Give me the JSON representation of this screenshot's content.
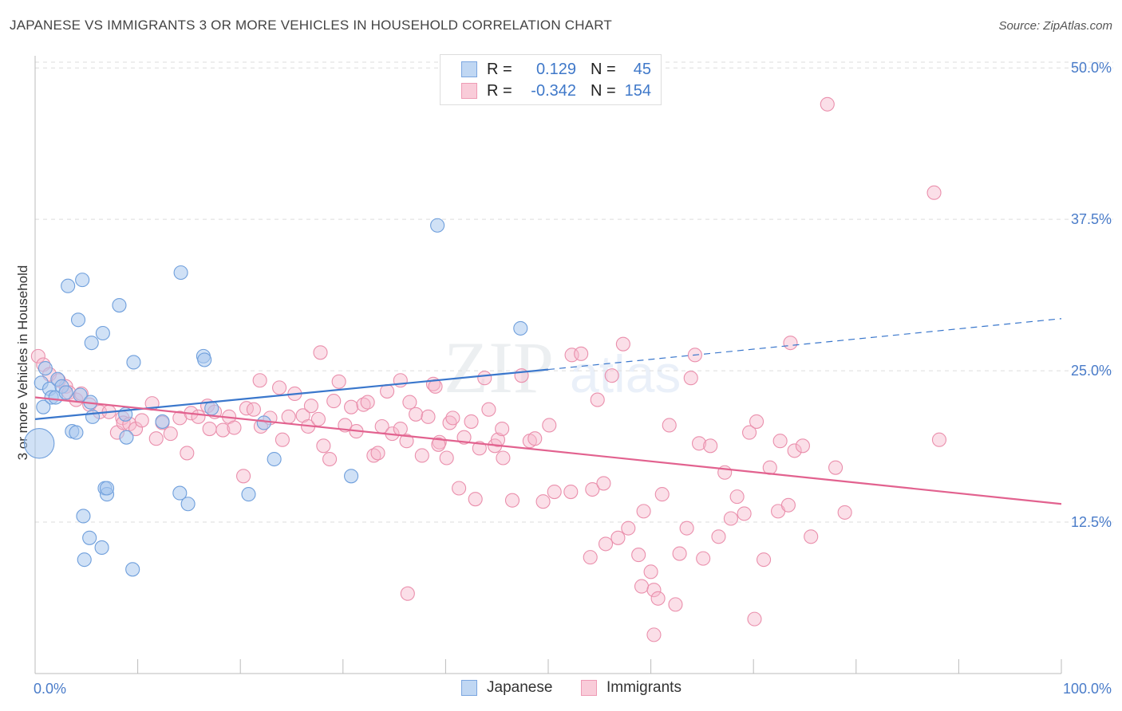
{
  "title": "JAPANESE VS IMMIGRANTS 3 OR MORE VEHICLES IN HOUSEHOLD CORRELATION CHART",
  "source": "Source: ZipAtlas.com",
  "watermark": {
    "zip": "ZIP",
    "atlas": "atlas"
  },
  "legend_top": [
    {
      "r_key": "R =",
      "r_value": "0.129",
      "n_key": "N =",
      "n_value": "45"
    },
    {
      "r_key": "R =",
      "r_value": "-0.342",
      "n_key": "N =",
      "n_value": "154"
    }
  ],
  "legend_bottom": [
    {
      "label": "Japanese"
    },
    {
      "label": "Immigrants"
    }
  ],
  "colors": {
    "japanese_fill": "#a9c8ef",
    "japanese_stroke": "#6f9fdc",
    "japanese_line": "#3a77cc",
    "immigrants_fill": "#f7b9cb",
    "immigrants_stroke": "#ea8fac",
    "immigrants_line": "#e2628f",
    "tick_label": "#4a7cc9",
    "grid": "#dddddd"
  },
  "chart_data": {
    "type": "scatter",
    "title": "JAPANESE VS IMMIGRANTS 3 OR MORE VEHICLES IN HOUSEHOLD CORRELATION CHART",
    "xlabel": "",
    "ylabel": "3 or more Vehicles in Household",
    "x_tick_labels": [
      "0.0%",
      "100.0%"
    ],
    "y_tick_labels": [
      "12.5%",
      "25.0%",
      "37.5%",
      "50.0%"
    ],
    "y_ticks": [
      12.5,
      25.0,
      37.5,
      50.0
    ],
    "xlim": [
      0,
      100
    ],
    "ylim": [
      0,
      51
    ],
    "grid": true,
    "legend_position": "top-center",
    "series": [
      {
        "name": "Japanese",
        "R": 0.129,
        "N": 45,
        "trend": {
          "solid_x": [
            0,
            50
          ],
          "solid_y": [
            21.0,
            25.1
          ],
          "dashed_x": [
            50,
            100
          ],
          "dashed_y": [
            25.1,
            29.3
          ]
        },
        "points": [
          [
            0.4,
            19.0,
            2.2
          ],
          [
            0.6,
            24.0,
            1
          ],
          [
            0.8,
            22.0,
            1
          ],
          [
            1.0,
            25.2,
            1
          ],
          [
            1.4,
            23.5,
            1
          ],
          [
            1.6,
            22.8,
            1
          ],
          [
            2.0,
            22.8,
            1
          ],
          [
            2.2,
            24.3,
            1
          ],
          [
            2.6,
            23.7,
            1
          ],
          [
            3.0,
            23.2,
            1
          ],
          [
            3.2,
            32.0,
            1
          ],
          [
            3.6,
            20.0,
            1
          ],
          [
            4.0,
            19.9,
            1
          ],
          [
            4.2,
            29.2,
            1
          ],
          [
            4.4,
            23.0,
            1
          ],
          [
            4.6,
            32.5,
            1
          ],
          [
            5.4,
            22.4,
            1
          ],
          [
            5.5,
            27.3,
            1
          ],
          [
            5.6,
            21.2,
            1
          ],
          [
            6.6,
            28.1,
            1
          ],
          [
            6.8,
            15.3,
            1
          ],
          [
            7.0,
            14.8,
            1
          ],
          [
            8.2,
            30.4,
            1
          ],
          [
            8.8,
            21.4,
            1
          ],
          [
            8.9,
            19.5,
            1
          ],
          [
            9.6,
            25.7,
            1
          ],
          [
            12.4,
            20.8,
            1
          ],
          [
            14.1,
            14.9,
            1
          ],
          [
            14.2,
            33.1,
            1
          ],
          [
            14.9,
            14.0,
            1
          ],
          [
            16.4,
            26.2,
            1
          ],
          [
            16.5,
            25.9,
            1
          ],
          [
            17.2,
            21.9,
            1
          ],
          [
            20.8,
            14.8,
            1
          ],
          [
            22.3,
            20.7,
            1
          ],
          [
            23.3,
            17.7,
            1
          ],
          [
            30.8,
            16.3,
            1
          ],
          [
            39.2,
            37.0,
            1
          ],
          [
            47.3,
            28.5,
            1
          ],
          [
            5.3,
            11.2,
            1
          ],
          [
            6.5,
            10.4,
            1
          ],
          [
            4.8,
            9.4,
            1
          ],
          [
            4.7,
            13.0,
            1
          ],
          [
            7.0,
            15.3,
            1
          ],
          [
            9.5,
            8.6,
            1
          ]
        ]
      },
      {
        "name": "Immigrants",
        "R": -0.342,
        "N": 154,
        "trend": {
          "x": [
            0,
            100
          ],
          "y": [
            22.8,
            14.0
          ]
        },
        "points": [
          [
            0.3,
            26.2
          ],
          [
            0.8,
            25.5
          ],
          [
            1.4,
            24.7
          ],
          [
            2.3,
            24.2
          ],
          [
            3.0,
            23.7
          ],
          [
            3.3,
            23.2
          ],
          [
            4.0,
            22.6
          ],
          [
            4.5,
            23.1
          ],
          [
            5.3,
            22.2
          ],
          [
            6.3,
            21.6
          ],
          [
            7.2,
            21.6
          ],
          [
            8.0,
            19.9
          ],
          [
            8.5,
            21.1
          ],
          [
            8.6,
            20.7
          ],
          [
            9.2,
            20.6
          ],
          [
            9.8,
            20.2
          ],
          [
            10.4,
            20.9
          ],
          [
            11.4,
            22.3
          ],
          [
            11.8,
            19.4
          ],
          [
            12.4,
            20.7
          ],
          [
            13.2,
            19.8
          ],
          [
            14.1,
            21.1
          ],
          [
            14.8,
            18.2
          ],
          [
            15.2,
            21.5
          ],
          [
            15.9,
            21.2
          ],
          [
            16.8,
            22.1
          ],
          [
            17.0,
            20.2
          ],
          [
            17.5,
            21.6
          ],
          [
            18.3,
            20.1
          ],
          [
            18.9,
            21.2
          ],
          [
            19.4,
            20.3
          ],
          [
            20.3,
            16.3
          ],
          [
            20.6,
            21.9
          ],
          [
            21.3,
            21.8
          ],
          [
            21.9,
            24.2
          ],
          [
            22.0,
            20.4
          ],
          [
            22.9,
            21.1
          ],
          [
            23.8,
            23.6
          ],
          [
            24.1,
            19.3
          ],
          [
            24.7,
            21.2
          ],
          [
            25.3,
            23.1
          ],
          [
            26.1,
            21.3
          ],
          [
            26.6,
            20.4
          ],
          [
            26.9,
            22.1
          ],
          [
            27.6,
            21.0
          ],
          [
            27.8,
            26.5
          ],
          [
            28.1,
            18.8
          ],
          [
            28.7,
            17.7
          ],
          [
            29.1,
            22.5
          ],
          [
            29.6,
            24.1
          ],
          [
            30.2,
            20.5
          ],
          [
            30.8,
            22.0
          ],
          [
            31.3,
            20.0
          ],
          [
            32.0,
            22.2
          ],
          [
            32.4,
            22.4
          ],
          [
            33.0,
            18.0
          ],
          [
            33.4,
            18.2
          ],
          [
            33.8,
            20.4
          ],
          [
            34.3,
            23.3
          ],
          [
            34.8,
            19.8
          ],
          [
            35.6,
            20.2
          ],
          [
            36.2,
            19.2
          ],
          [
            36.5,
            22.4
          ],
          [
            37.1,
            21.4
          ],
          [
            37.7,
            18.0
          ],
          [
            38.3,
            21.2
          ],
          [
            38.8,
            23.9
          ],
          [
            39.0,
            23.7
          ],
          [
            39.4,
            19.1
          ],
          [
            40.1,
            17.8
          ],
          [
            40.4,
            20.7
          ],
          [
            41.3,
            15.3
          ],
          [
            41.8,
            19.5
          ],
          [
            42.5,
            20.8
          ],
          [
            42.9,
            14.4
          ],
          [
            43.3,
            18.6
          ],
          [
            43.8,
            24.4
          ],
          [
            44.2,
            21.8
          ],
          [
            44.8,
            18.8
          ],
          [
            45.1,
            19.3
          ],
          [
            45.5,
            20.2
          ],
          [
            45.6,
            17.8
          ],
          [
            46.5,
            14.3
          ],
          [
            47.4,
            24.6
          ],
          [
            48.2,
            19.2
          ],
          [
            48.7,
            19.4
          ],
          [
            49.5,
            14.2
          ],
          [
            50.1,
            20.5
          ],
          [
            50.6,
            15.0
          ],
          [
            52.3,
            26.3
          ],
          [
            53.2,
            26.4
          ],
          [
            52.2,
            15.0
          ],
          [
            54.3,
            15.2
          ],
          [
            54.8,
            22.6
          ],
          [
            55.4,
            15.7
          ],
          [
            55.6,
            10.7
          ],
          [
            56.2,
            24.6
          ],
          [
            56.8,
            11.2
          ],
          [
            57.3,
            27.2
          ],
          [
            57.8,
            12.0
          ],
          [
            58.8,
            9.8
          ],
          [
            59.1,
            7.2
          ],
          [
            59.3,
            13.4
          ],
          [
            60.3,
            6.9
          ],
          [
            60.7,
            6.2
          ],
          [
            61.1,
            14.8
          ],
          [
            61.8,
            20.5
          ],
          [
            62.4,
            5.7
          ],
          [
            62.8,
            9.9
          ],
          [
            63.5,
            12.0
          ],
          [
            63.9,
            24.4
          ],
          [
            64.3,
            26.3
          ],
          [
            64.7,
            19.0
          ],
          [
            65.1,
            9.5
          ],
          [
            65.8,
            18.8
          ],
          [
            66.6,
            11.3
          ],
          [
            67.2,
            16.6
          ],
          [
            67.8,
            12.8
          ],
          [
            68.4,
            14.6
          ],
          [
            69.1,
            13.2
          ],
          [
            69.6,
            19.9
          ],
          [
            70.3,
            20.8
          ],
          [
            71.0,
            9.4
          ],
          [
            71.6,
            17.0
          ],
          [
            72.4,
            13.4
          ],
          [
            72.6,
            19.2
          ],
          [
            73.4,
            13.9
          ],
          [
            73.6,
            27.3
          ],
          [
            74.0,
            18.4
          ],
          [
            74.8,
            18.8
          ],
          [
            75.6,
            11.3
          ],
          [
            77.2,
            47.0
          ],
          [
            78.0,
            17.0
          ],
          [
            78.9,
            13.3
          ],
          [
            87.6,
            39.7
          ],
          [
            88.1,
            19.3
          ],
          [
            70.1,
            4.5
          ],
          [
            60.0,
            8.4
          ],
          [
            60.3,
            3.2
          ],
          [
            36.3,
            6.6
          ],
          [
            54.1,
            9.6
          ],
          [
            40.7,
            21.1
          ],
          [
            39.3,
            18.9
          ],
          [
            35.6,
            24.2
          ]
        ]
      }
    ]
  }
}
